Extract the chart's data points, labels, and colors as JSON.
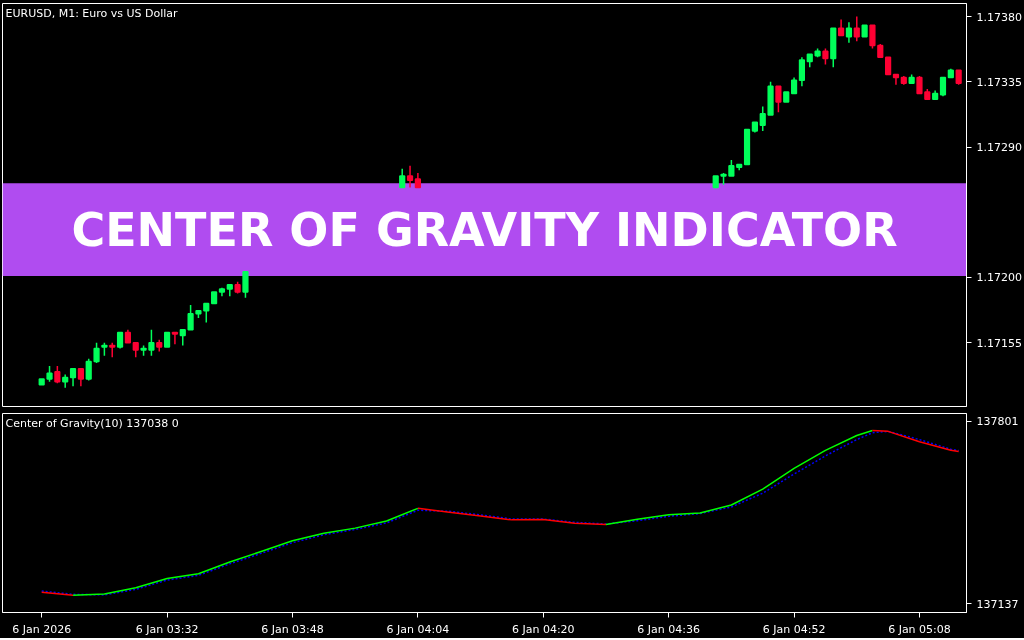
{
  "chart_data": [
    {
      "type": "candlestick",
      "title": "EURUSD, M1:  Euro vs US Dollar",
      "bands": [
        {
          "axis": "y",
          "from": 1.17201,
          "to": 1.17265,
          "label": "CENTER OF GRAVITY INDICATOR",
          "color": "#b04cf0"
        }
      ],
      "x": [
        "2026-01-06T03:16",
        "2026-01-06T03:17",
        "2026-01-06T03:18",
        "2026-01-06T03:19",
        "2026-01-06T03:20",
        "2026-01-06T03:21",
        "2026-01-06T03:22",
        "2026-01-06T03:23",
        "2026-01-06T03:24",
        "2026-01-06T03:25",
        "2026-01-06T03:26",
        "2026-01-06T03:27",
        "2026-01-06T03:28",
        "2026-01-06T03:29",
        "2026-01-06T03:30",
        "2026-01-06T03:31",
        "2026-01-06T03:32",
        "2026-01-06T03:33",
        "2026-01-06T03:34",
        "2026-01-06T03:35",
        "2026-01-06T03:36",
        "2026-01-06T03:37",
        "2026-01-06T03:38",
        "2026-01-06T03:39",
        "2026-01-06T03:40",
        "2026-01-06T03:41",
        "2026-01-06T03:42",
        "2026-01-06T04:02",
        "2026-01-06T04:03",
        "2026-01-06T04:04",
        "2026-01-06T04:42",
        "2026-01-06T04:43",
        "2026-01-06T04:44",
        "2026-01-06T04:45",
        "2026-01-06T04:46",
        "2026-01-06T04:47",
        "2026-01-06T04:48",
        "2026-01-06T04:49",
        "2026-01-06T04:50",
        "2026-01-06T04:51",
        "2026-01-06T04:52",
        "2026-01-06T04:53",
        "2026-01-06T04:54",
        "2026-01-06T04:55",
        "2026-01-06T04:56",
        "2026-01-06T04:57",
        "2026-01-06T04:58",
        "2026-01-06T04:59",
        "2026-01-06T05:00",
        "2026-01-06T05:01",
        "2026-01-06T05:02",
        "2026-01-06T05:03",
        "2026-01-06T05:04",
        "2026-01-06T05:05",
        "2026-01-06T05:06",
        "2026-01-06T05:07",
        "2026-01-06T05:08",
        "2026-01-06T05:09",
        "2026-01-06T05:10",
        "2026-01-06T05:11",
        "2026-01-06T05:12",
        "2026-01-06T05:13"
      ],
      "ohlc": [
        [
          1.17126,
          1.1713,
          1.17126,
          1.1713
        ],
        [
          1.1713,
          1.17139,
          1.17128,
          1.17134
        ],
        [
          1.17135,
          1.17139,
          1.17127,
          1.17128
        ],
        [
          1.17128,
          1.17133,
          1.17124,
          1.17131
        ],
        [
          1.17131,
          1.17137,
          1.17125,
          1.17137
        ],
        [
          1.17137,
          1.17137,
          1.17125,
          1.1713
        ],
        [
          1.1713,
          1.17144,
          1.17129,
          1.17142
        ],
        [
          1.17142,
          1.17155,
          1.17141,
          1.17151
        ],
        [
          1.17152,
          1.17155,
          1.17146,
          1.17153
        ],
        [
          1.17153,
          1.17155,
          1.17145,
          1.17152
        ],
        [
          1.17152,
          1.17162,
          1.17151,
          1.17162
        ],
        [
          1.17162,
          1.17164,
          1.17155,
          1.17155
        ],
        [
          1.17155,
          1.17155,
          1.17145,
          1.1715
        ],
        [
          1.1715,
          1.17153,
          1.17146,
          1.17151
        ],
        [
          1.1715,
          1.17164,
          1.17146,
          1.17155
        ],
        [
          1.17155,
          1.17157,
          1.17149,
          1.17152
        ],
        [
          1.17152,
          1.17162,
          1.17152,
          1.17162
        ],
        [
          1.17162,
          1.17162,
          1.17154,
          1.17161
        ],
        [
          1.1716,
          1.17164,
          1.17153,
          1.17164
        ],
        [
          1.17164,
          1.17181,
          1.17164,
          1.17175
        ],
        [
          1.17175,
          1.17177,
          1.17172,
          1.17177
        ],
        [
          1.17177,
          1.17182,
          1.17169,
          1.17182
        ],
        [
          1.17182,
          1.1719,
          1.17182,
          1.1719
        ],
        [
          1.1719,
          1.17193,
          1.17187,
          1.17192
        ],
        [
          1.17192,
          1.17195,
          1.17187,
          1.17195
        ],
        [
          1.17195,
          1.17197,
          1.17189,
          1.1719
        ],
        [
          1.1719,
          1.17204,
          1.17186,
          1.17204
        ],
        [
          1.17262,
          1.17275,
          1.17262,
          1.1727
        ],
        [
          1.1727,
          1.17277,
          1.17262,
          1.17267
        ],
        [
          1.17268,
          1.17272,
          1.17262,
          1.17262
        ],
        [
          1.17262,
          1.1727,
          1.17262,
          1.1727
        ],
        [
          1.1727,
          1.17272,
          1.17264,
          1.17271
        ],
        [
          1.1727,
          1.17281,
          1.1727,
          1.17277
        ],
        [
          1.17276,
          1.17278,
          1.17274,
          1.17278
        ],
        [
          1.17278,
          1.17302,
          1.17278,
          1.17302
        ],
        [
          1.17301,
          1.17307,
          1.173,
          1.17307
        ],
        [
          1.17305,
          1.17318,
          1.17301,
          1.17313
        ],
        [
          1.17312,
          1.17335,
          1.17312,
          1.17332
        ],
        [
          1.17332,
          1.17332,
          1.17314,
          1.17321
        ],
        [
          1.17321,
          1.17328,
          1.17321,
          1.17328
        ],
        [
          1.17327,
          1.17338,
          1.17327,
          1.17336
        ],
        [
          1.17336,
          1.17352,
          1.17332,
          1.1735
        ],
        [
          1.17349,
          1.17354,
          1.17345,
          1.17354
        ],
        [
          1.17353,
          1.17358,
          1.17352,
          1.17356
        ],
        [
          1.17356,
          1.17358,
          1.17347,
          1.17351
        ],
        [
          1.17351,
          1.17372,
          1.17345,
          1.17372
        ],
        [
          1.17372,
          1.17378,
          1.17367,
          1.17367
        ],
        [
          1.17366,
          1.17376,
          1.17362,
          1.17372
        ],
        [
          1.17372,
          1.1738,
          1.17363,
          1.17366
        ],
        [
          1.17366,
          1.17374,
          1.17366,
          1.17374
        ],
        [
          1.17374,
          1.17374,
          1.17358,
          1.1736
        ],
        [
          1.1736,
          1.17361,
          1.17352,
          1.17352
        ],
        [
          1.17352,
          1.17352,
          1.1734,
          1.1734
        ],
        [
          1.1734,
          1.1734,
          1.17333,
          1.17338
        ],
        [
          1.17338,
          1.17339,
          1.17333,
          1.17334
        ],
        [
          1.17334,
          1.1734,
          1.17334,
          1.17338
        ],
        [
          1.17338,
          1.17339,
          1.17327,
          1.17327
        ],
        [
          1.17328,
          1.1733,
          1.17323,
          1.17323
        ],
        [
          1.17323,
          1.17329,
          1.17323,
          1.17327
        ],
        [
          1.17326,
          1.17338,
          1.17325,
          1.17338
        ],
        [
          1.17338,
          1.17344,
          1.17338,
          1.17343
        ],
        [
          1.17343,
          1.17343,
          1.17333,
          1.17334
        ]
      ],
      "colors": [
        "#00ff5a",
        "#00ff5a",
        "#ff0033",
        "#00ff5a",
        "#00ff5a",
        "#ff0033",
        "#00ff5a",
        "#00ff5a",
        "#00ff5a",
        "#ff0033",
        "#00ff5a",
        "#ff0033",
        "#ff0033",
        "#00ff5a",
        "#00ff5a",
        "#ff0033",
        "#00ff5a",
        "#ff0033",
        "#00ff5a",
        "#00ff5a",
        "#00ff5a",
        "#00ff5a",
        "#00ff5a",
        "#00ff5a",
        "#00ff5a",
        "#ff0033",
        "#00ff5a",
        "#00ff5a",
        "#ff0033",
        "#ff0033",
        "#00ff5a",
        "#00ff5a",
        "#00ff5a",
        "#00ff5a",
        "#00ff5a",
        "#00ff5a",
        "#00ff5a",
        "#00ff5a",
        "#ff0033",
        "#00ff5a",
        "#00ff5a",
        "#00ff5a",
        "#00ff5a",
        "#00ff5a",
        "#ff0033",
        "#00ff5a",
        "#ff0033",
        "#00ff5a",
        "#ff0033",
        "#00ff5a",
        "#ff0033",
        "#ff0033",
        "#ff0033",
        "#ff0033",
        "#ff0033",
        "#00ff5a",
        "#ff0033",
        "#ff0033",
        "#00ff5a",
        "#00ff5a",
        "#00ff5a",
        "#ff0033"
      ],
      "xlim": [
        "2026-01-06T03:11",
        "2026-01-06T05:14"
      ],
      "ylim": [
        1.17111,
        1.17389
      ],
      "yticks": [
        {
          "value": 1.17155,
          "label": "1.17155"
        },
        {
          "value": 1.172,
          "label": "1.17200"
        },
        {
          "value": 1.1729,
          "label": "1.17290"
        },
        {
          "value": 1.17335,
          "label": "1.17335"
        },
        {
          "value": 1.1738,
          "label": "1.17380"
        }
      ],
      "tick_labels": "y"
    },
    {
      "type": "line",
      "title": "Center of Gravity(10) 137038 0",
      "x": [
        "2026-01-06T03:16",
        "2026-01-06T03:20",
        "2026-01-06T03:24",
        "2026-01-06T03:28",
        "2026-01-06T03:32",
        "2026-01-06T03:36",
        "2026-01-06T03:40",
        "2026-01-06T03:44",
        "2026-01-06T03:48",
        "2026-01-06T03:52",
        "2026-01-06T03:56",
        "2026-01-06T04:00",
        "2026-01-06T04:04",
        "2026-01-06T04:08",
        "2026-01-06T04:12",
        "2026-01-06T04:16",
        "2026-01-06T04:20",
        "2026-01-06T04:24",
        "2026-01-06T04:28",
        "2026-01-06T04:32",
        "2026-01-06T04:36",
        "2026-01-06T04:40",
        "2026-01-06T04:44",
        "2026-01-06T04:48",
        "2026-01-06T04:52",
        "2026-01-06T04:56",
        "2026-01-06T05:00",
        "2026-01-06T05:02",
        "2026-01-06T05:04",
        "2026-01-06T05:08",
        "2026-01-06T05:12",
        "2026-01-06T05:13"
      ],
      "series": [
        {
          "color": "#0000ff",
          "line_style": "dashed",
          "values": [
            137184,
            137172,
            137170,
            137190,
            137224,
            137241,
            137283,
            137321,
            137360,
            137389,
            137408,
            137432,
            137478,
            137474,
            137461,
            137446,
            137446,
            137434,
            137428,
            137440,
            137456,
            137466,
            137490,
            137540,
            137610,
            137676,
            137735,
            137760,
            137765,
            137735,
            137700,
            137695
          ]
        },
        {
          "color": "#00ff00",
          "values": [
            null,
            137169,
            137173,
            137196,
            137230,
            137247,
            137290,
            137328,
            137367,
            137394,
            137413,
            137439,
            137485,
            null,
            null,
            null,
            null,
            null,
            137426,
            137445,
            137462,
            137468,
            137497,
            137555,
            137630,
            137696,
            137750,
            137768,
            null,
            null,
            null,
            null
          ]
        },
        {
          "color": "#ff0000",
          "values": [
            137180,
            137169,
            null,
            null,
            null,
            null,
            null,
            null,
            null,
            null,
            null,
            null,
            137485,
            137471,
            137457,
            137443,
            137444,
            137431,
            137426,
            null,
            null,
            null,
            null,
            null,
            null,
            null,
            null,
            137768,
            137765,
            137727,
            137696,
            137692
          ]
        }
      ],
      "xlim": [
        "2026-01-06T03:11",
        "2026-01-06T05:14"
      ],
      "ylim": [
        137106,
        137830
      ],
      "yticks": [
        {
          "value": 137137,
          "label": "137137"
        },
        {
          "value": 137801,
          "label": "137801"
        }
      ],
      "xticks": [
        {
          "value": "2026-01-06T03:16",
          "label": "6 Jan 2026"
        },
        {
          "value": "2026-01-06T03:32",
          "label": "6 Jan 03:32"
        },
        {
          "value": "2026-01-06T03:48",
          "label": "6 Jan 03:48"
        },
        {
          "value": "2026-01-06T04:04",
          "label": "6 Jan 04:04"
        },
        {
          "value": "2026-01-06T04:20",
          "label": "6 Jan 04:20"
        },
        {
          "value": "2026-01-06T04:36",
          "label": "6 Jan 04:36"
        },
        {
          "value": "2026-01-06T04:52",
          "label": "6 Jan 04:52"
        },
        {
          "value": "2026-01-06T05:08",
          "label": "6 Jan 05:08"
        }
      ]
    }
  ]
}
